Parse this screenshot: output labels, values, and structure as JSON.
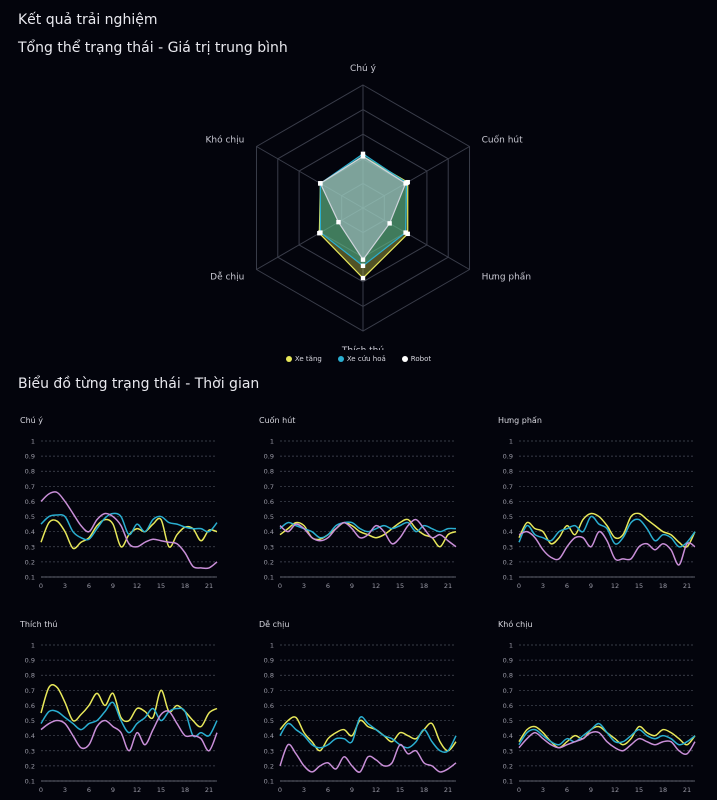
{
  "page": {
    "title": "Kết quả trải nghiệm",
    "overall_heading": "Tổng thể trạng thái - Giá trị trung bình",
    "timeline_heading": "Biểu đồ từng trạng thái - Thời gian"
  },
  "colors": {
    "background": "#03040c",
    "grid": "#3a3d4a",
    "xe_tang": "#e8e85a",
    "xe_cuu_hoa": "#2aaed0",
    "robot": "#c98fd8"
  },
  "chart_data": [
    {
      "type": "radar",
      "axes": [
        "Chú ý",
        "Cuốn hút",
        "Hưng phấn",
        "Thích thú",
        "Dễ chịu",
        "Khó chịu"
      ],
      "rlim": [
        0,
        1
      ],
      "levels": 5,
      "legend_position": "bottom",
      "series": [
        {
          "name": "Xe tăng",
          "values": [
            0.42,
            0.42,
            0.42,
            0.57,
            0.41,
            0.4
          ]
        },
        {
          "name": "Xe cứu hoả",
          "values": [
            0.44,
            0.41,
            0.4,
            0.47,
            0.4,
            0.4
          ]
        },
        {
          "name": "Robot",
          "values": [
            0.42,
            0.4,
            0.25,
            0.42,
            0.23,
            0.4
          ]
        }
      ]
    },
    {
      "type": "line",
      "title": "Chú ý",
      "x": [
        0,
        1,
        2,
        3,
        4,
        5,
        6,
        7,
        8,
        9,
        10,
        11,
        12,
        13,
        14,
        15,
        16,
        17,
        18,
        19,
        20,
        21,
        22
      ],
      "xticks": [
        0,
        3,
        6,
        9,
        12,
        15,
        18,
        21
      ],
      "yticks": [
        0.1,
        0.2,
        0.3,
        0.4,
        0.5,
        0.6,
        0.7,
        0.8,
        0.9,
        1
      ],
      "ylim": [
        0.1,
        1
      ],
      "series": [
        {
          "name": "Xe tăng",
          "values": [
            0.33,
            0.46,
            0.47,
            0.4,
            0.29,
            0.33,
            0.36,
            0.44,
            0.48,
            0.45,
            0.3,
            0.38,
            0.42,
            0.4,
            0.45,
            0.48,
            0.3,
            0.38,
            0.43,
            0.42,
            0.34,
            0.41,
            0.4
          ]
        },
        {
          "name": "Xe cứu hoả",
          "values": [
            0.45,
            0.5,
            0.51,
            0.5,
            0.4,
            0.36,
            0.35,
            0.42,
            0.49,
            0.52,
            0.5,
            0.38,
            0.45,
            0.4,
            0.48,
            0.5,
            0.46,
            0.45,
            0.43,
            0.42,
            0.42,
            0.4,
            0.46
          ]
        },
        {
          "name": "Robot",
          "values": [
            0.6,
            0.65,
            0.66,
            0.6,
            0.52,
            0.44,
            0.4,
            0.48,
            0.52,
            0.5,
            0.44,
            0.32,
            0.3,
            0.33,
            0.35,
            0.34,
            0.33,
            0.32,
            0.26,
            0.17,
            0.16,
            0.16,
            0.2
          ]
        }
      ]
    },
    {
      "type": "line",
      "title": "Cuốn hút",
      "x": [
        0,
        1,
        2,
        3,
        4,
        5,
        6,
        7,
        8,
        9,
        10,
        11,
        12,
        13,
        14,
        15,
        16,
        17,
        18,
        19,
        20,
        21,
        22
      ],
      "xticks": [
        0,
        3,
        6,
        9,
        12,
        15,
        18,
        21
      ],
      "yticks": [
        0.1,
        0.2,
        0.3,
        0.4,
        0.5,
        0.6,
        0.7,
        0.8,
        0.9,
        1
      ],
      "ylim": [
        0.1,
        1
      ],
      "series": [
        {
          "name": "Xe tăng",
          "values": [
            0.38,
            0.42,
            0.46,
            0.44,
            0.36,
            0.35,
            0.38,
            0.42,
            0.46,
            0.44,
            0.4,
            0.38,
            0.36,
            0.38,
            0.42,
            0.46,
            0.48,
            0.42,
            0.38,
            0.36,
            0.3,
            0.38,
            0.4
          ]
        },
        {
          "name": "Xe cứu hoả",
          "values": [
            0.42,
            0.46,
            0.44,
            0.42,
            0.4,
            0.36,
            0.38,
            0.44,
            0.46,
            0.46,
            0.42,
            0.4,
            0.42,
            0.44,
            0.42,
            0.44,
            0.46,
            0.4,
            0.44,
            0.42,
            0.4,
            0.42,
            0.42
          ]
        },
        {
          "name": "Robot",
          "values": [
            0.44,
            0.4,
            0.45,
            0.42,
            0.36,
            0.34,
            0.36,
            0.42,
            0.46,
            0.42,
            0.36,
            0.38,
            0.44,
            0.4,
            0.32,
            0.36,
            0.44,
            0.48,
            0.42,
            0.36,
            0.38,
            0.34,
            0.3
          ]
        }
      ]
    },
    {
      "type": "line",
      "title": "Hưng phấn",
      "x": [
        0,
        1,
        2,
        3,
        4,
        5,
        6,
        7,
        8,
        9,
        10,
        11,
        12,
        13,
        14,
        15,
        16,
        17,
        18,
        19,
        20,
        21,
        22
      ],
      "xticks": [
        0,
        3,
        6,
        9,
        12,
        15,
        18,
        21
      ],
      "yticks": [
        0.1,
        0.2,
        0.3,
        0.4,
        0.5,
        0.6,
        0.7,
        0.8,
        0.9,
        1
      ],
      "ylim": [
        0.1,
        1
      ],
      "series": [
        {
          "name": "Xe tăng",
          "values": [
            0.36,
            0.46,
            0.42,
            0.4,
            0.32,
            0.36,
            0.44,
            0.38,
            0.48,
            0.52,
            0.5,
            0.44,
            0.36,
            0.38,
            0.5,
            0.52,
            0.48,
            0.44,
            0.4,
            0.38,
            0.33,
            0.3,
            0.4
          ]
        },
        {
          "name": "Xe cứu hoả",
          "values": [
            0.33,
            0.44,
            0.38,
            0.36,
            0.34,
            0.4,
            0.42,
            0.44,
            0.4,
            0.5,
            0.45,
            0.42,
            0.32,
            0.36,
            0.46,
            0.48,
            0.42,
            0.34,
            0.38,
            0.36,
            0.3,
            0.33,
            0.4
          ]
        },
        {
          "name": "Robot",
          "values": [
            0.38,
            0.4,
            0.36,
            0.28,
            0.23,
            0.22,
            0.3,
            0.36,
            0.36,
            0.3,
            0.4,
            0.34,
            0.22,
            0.22,
            0.22,
            0.3,
            0.32,
            0.28,
            0.32,
            0.28,
            0.18,
            0.32,
            0.3
          ]
        }
      ]
    },
    {
      "type": "line",
      "title": "Thích thú",
      "x": [
        0,
        1,
        2,
        3,
        4,
        5,
        6,
        7,
        8,
        9,
        10,
        11,
        12,
        13,
        14,
        15,
        16,
        17,
        18,
        19,
        20,
        21,
        22
      ],
      "xticks": [
        0,
        3,
        6,
        9,
        12,
        15,
        18,
        21
      ],
      "yticks": [
        0.1,
        0.2,
        0.3,
        0.4,
        0.5,
        0.6,
        0.7,
        0.8,
        0.9,
        1
      ],
      "ylim": [
        0.1,
        1
      ],
      "series": [
        {
          "name": "Xe tăng",
          "values": [
            0.55,
            0.72,
            0.72,
            0.62,
            0.5,
            0.54,
            0.6,
            0.68,
            0.6,
            0.68,
            0.52,
            0.5,
            0.58,
            0.56,
            0.52,
            0.7,
            0.56,
            0.6,
            0.56,
            0.5,
            0.46,
            0.55,
            0.58
          ]
        },
        {
          "name": "Xe cứu hoả",
          "values": [
            0.48,
            0.56,
            0.56,
            0.52,
            0.48,
            0.44,
            0.48,
            0.5,
            0.56,
            0.62,
            0.5,
            0.42,
            0.48,
            0.52,
            0.58,
            0.5,
            0.56,
            0.58,
            0.56,
            0.4,
            0.42,
            0.4,
            0.5
          ]
        },
        {
          "name": "Robot",
          "values": [
            0.44,
            0.48,
            0.5,
            0.48,
            0.4,
            0.32,
            0.34,
            0.46,
            0.5,
            0.46,
            0.42,
            0.3,
            0.42,
            0.34,
            0.44,
            0.54,
            0.56,
            0.48,
            0.4,
            0.4,
            0.38,
            0.3,
            0.42
          ]
        }
      ]
    },
    {
      "type": "line",
      "title": "Dễ chịu",
      "x": [
        0,
        1,
        2,
        3,
        4,
        5,
        6,
        7,
        8,
        9,
        10,
        11,
        12,
        13,
        14,
        15,
        16,
        17,
        18,
        19,
        20,
        21,
        22
      ],
      "xticks": [
        0,
        3,
        6,
        9,
        12,
        15,
        18,
        21
      ],
      "yticks": [
        0.1,
        0.2,
        0.3,
        0.4,
        0.5,
        0.6,
        0.7,
        0.8,
        0.9,
        1
      ],
      "ylim": [
        0.1,
        1
      ],
      "series": [
        {
          "name": "Xe tăng",
          "values": [
            0.44,
            0.5,
            0.52,
            0.42,
            0.36,
            0.3,
            0.38,
            0.42,
            0.44,
            0.4,
            0.5,
            0.46,
            0.44,
            0.4,
            0.36,
            0.42,
            0.4,
            0.38,
            0.44,
            0.48,
            0.36,
            0.3,
            0.36
          ]
        },
        {
          "name": "Xe cứu hoả",
          "values": [
            0.4,
            0.48,
            0.44,
            0.4,
            0.34,
            0.32,
            0.34,
            0.38,
            0.38,
            0.36,
            0.52,
            0.48,
            0.44,
            0.4,
            0.38,
            0.34,
            0.32,
            0.36,
            0.44,
            0.36,
            0.3,
            0.3,
            0.4
          ]
        },
        {
          "name": "Robot",
          "values": [
            0.2,
            0.34,
            0.28,
            0.2,
            0.16,
            0.2,
            0.22,
            0.18,
            0.26,
            0.2,
            0.16,
            0.26,
            0.24,
            0.2,
            0.22,
            0.34,
            0.28,
            0.3,
            0.22,
            0.2,
            0.16,
            0.18,
            0.22
          ]
        }
      ]
    },
    {
      "type": "line",
      "title": "Khó chịu",
      "x": [
        0,
        1,
        2,
        3,
        4,
        5,
        6,
        7,
        8,
        9,
        10,
        11,
        12,
        13,
        14,
        15,
        16,
        17,
        18,
        19,
        20,
        21,
        22
      ],
      "xticks": [
        0,
        3,
        6,
        9,
        12,
        15,
        18,
        21
      ],
      "yticks": [
        0.1,
        0.2,
        0.3,
        0.4,
        0.5,
        0.6,
        0.7,
        0.8,
        0.9,
        1
      ],
      "ylim": [
        0.1,
        1
      ],
      "series": [
        {
          "name": "Xe tăng",
          "values": [
            0.36,
            0.44,
            0.46,
            0.42,
            0.36,
            0.32,
            0.36,
            0.4,
            0.38,
            0.44,
            0.46,
            0.42,
            0.38,
            0.34,
            0.38,
            0.46,
            0.42,
            0.4,
            0.44,
            0.42,
            0.38,
            0.34,
            0.4
          ]
        },
        {
          "name": "Xe cứu hoả",
          "values": [
            0.34,
            0.42,
            0.44,
            0.4,
            0.36,
            0.34,
            0.38,
            0.36,
            0.4,
            0.44,
            0.48,
            0.42,
            0.36,
            0.36,
            0.4,
            0.44,
            0.4,
            0.38,
            0.4,
            0.38,
            0.34,
            0.36,
            0.4
          ]
        },
        {
          "name": "Robot",
          "values": [
            0.32,
            0.38,
            0.42,
            0.38,
            0.34,
            0.32,
            0.34,
            0.36,
            0.38,
            0.42,
            0.42,
            0.36,
            0.32,
            0.3,
            0.34,
            0.38,
            0.36,
            0.34,
            0.36,
            0.36,
            0.3,
            0.28,
            0.36
          ]
        }
      ]
    }
  ]
}
